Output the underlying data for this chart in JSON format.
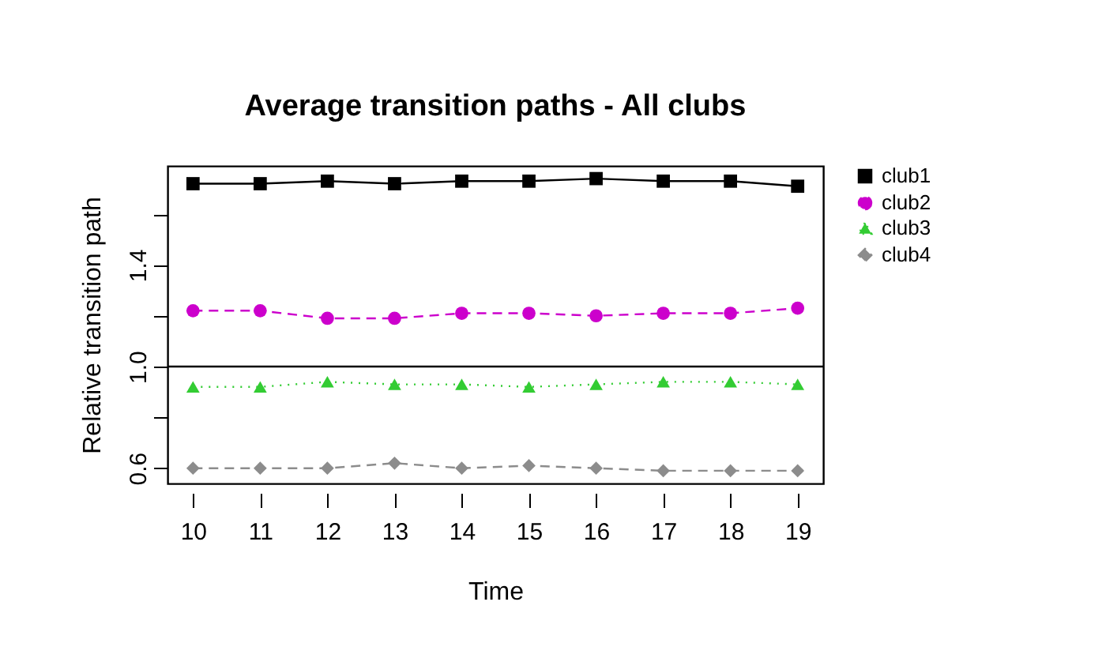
{
  "chart_data": {
    "type": "line",
    "title": "Average transition paths - All clubs",
    "xlabel": "Time",
    "ylabel": "Relative transition path",
    "x": [
      10,
      11,
      12,
      13,
      14,
      15,
      16,
      17,
      18,
      19
    ],
    "series": [
      {
        "name": "club1",
        "color": "#000000",
        "marker": "square",
        "line_style": "solid",
        "values": [
          1.72,
          1.72,
          1.73,
          1.72,
          1.73,
          1.73,
          1.74,
          1.73,
          1.73,
          1.71
        ]
      },
      {
        "name": "club2",
        "color": "#cc00cc",
        "marker": "circle",
        "line_style": "dashed",
        "values": [
          1.22,
          1.22,
          1.19,
          1.19,
          1.21,
          1.21,
          1.2,
          1.21,
          1.21,
          1.23
        ]
      },
      {
        "name": "club3",
        "color": "#33cc33",
        "marker": "triangle",
        "line_style": "dotted",
        "values": [
          0.92,
          0.92,
          0.94,
          0.93,
          0.93,
          0.92,
          0.93,
          0.94,
          0.94,
          0.93
        ]
      },
      {
        "name": "club4",
        "color": "#8c8c8c",
        "marker": "diamond",
        "line_style": "dashed",
        "values": [
          0.6,
          0.6,
          0.6,
          0.62,
          0.6,
          0.61,
          0.6,
          0.59,
          0.59,
          0.59
        ]
      }
    ],
    "xlim": [
      9.62,
      19.38
    ],
    "xticks": [
      10,
      11,
      12,
      13,
      14,
      15,
      16,
      17,
      18,
      19
    ],
    "ylim": [
      0.54,
      1.79
    ],
    "yticks": [
      0.6,
      {
        "value": 0.8,
        "label": null
      },
      {
        "value": 1.0,
        "label": "1.0"
      },
      {
        "value": 1.2,
        "label": null
      },
      1.4,
      {
        "value": 1.6,
        "label": null
      }
    ],
    "ref_lines": [
      {
        "axis": "y",
        "value": 1.0,
        "color": "#000000",
        "line_style": "solid"
      }
    ],
    "grid": false,
    "legend": "right"
  }
}
